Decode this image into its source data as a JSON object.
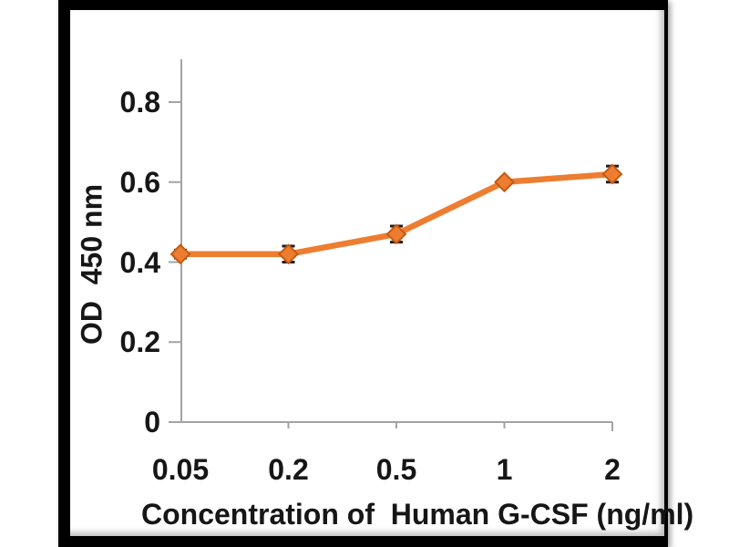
{
  "window": {
    "background_color": "#ffffff",
    "frame_color": "#000000",
    "plot_background_color": "#ffffff"
  },
  "chart_data": {
    "type": "line",
    "title": "",
    "xlabel": "Concentration of  Human G-CSF (ng/ml)",
    "ylabel": "OD  450 nm",
    "x_scale": "category",
    "categories": [
      0.05,
      0.2,
      0.5,
      1,
      2
    ],
    "x_tick_labels": [
      "0.05",
      "0.2",
      "0.5",
      "1",
      "2"
    ],
    "y_ticks": [
      0,
      0.2,
      0.4,
      0.6,
      0.8
    ],
    "y_tick_labels": [
      "0",
      "0.2",
      "0.4",
      "0.6",
      "0.8"
    ],
    "ylim": [
      0,
      0.9
    ],
    "grid": false,
    "legend": false,
    "series": [
      {
        "values": [
          0.42,
          0.42,
          0.47,
          0.6,
          0.62
        ],
        "errors": [
          0.01,
          0.02,
          0.02,
          0.005,
          0.02
        ],
        "line_color": "#ED7D31",
        "marker": "diamond",
        "marker_fill_color": "#ED7D31",
        "marker_border_color": "#C55A11",
        "error_bar_color": "#1f1f1f"
      }
    ],
    "axis_color": "#a3a3a3",
    "text_color": "#161616"
  }
}
